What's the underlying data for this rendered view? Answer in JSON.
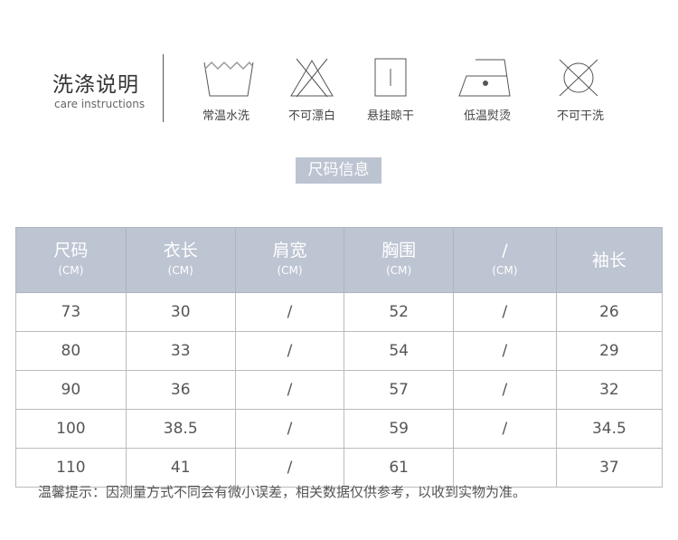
{
  "care": {
    "title": "洗涤说明",
    "subtitle": "care instructions",
    "items": [
      {
        "icon": "wash-tub-icon",
        "label": "常温水洗"
      },
      {
        "icon": "no-bleach-icon",
        "label": "不可漂白"
      },
      {
        "icon": "hang-dry-icon",
        "label": "悬挂晾干"
      },
      {
        "icon": "low-iron-icon",
        "label": "低温熨烫"
      },
      {
        "icon": "no-dry-clean-icon",
        "label": "不可干洗"
      }
    ]
  },
  "size": {
    "badge": "尺码信息",
    "headers": [
      {
        "label": "尺码",
        "unit": "(CM)"
      },
      {
        "label": "衣长",
        "unit": "(CM)"
      },
      {
        "label": "肩宽",
        "unit": "(CM)"
      },
      {
        "label": "胸围",
        "unit": "(CM)"
      },
      {
        "label": "/",
        "unit": "(CM)"
      },
      {
        "label": "袖长",
        "unit": ""
      }
    ],
    "rows": [
      [
        "73",
        "30",
        "/",
        "52",
        "/",
        "26"
      ],
      [
        "80",
        "33",
        "/",
        "54",
        "/",
        "29"
      ],
      [
        "90",
        "36",
        "/",
        "57",
        "/",
        "32"
      ],
      [
        "100",
        "38.5",
        "/",
        "59",
        "/",
        "34.5"
      ],
      [
        "110",
        "41",
        "/",
        "61",
        "",
        "37"
      ]
    ],
    "note": "温馨提示：因测量方式不同会有微小误差，相关数据仅供参考，以收到实物为准。"
  },
  "colors": {
    "header_bg": "#bdc4d2",
    "icon_stroke": "#555"
  }
}
